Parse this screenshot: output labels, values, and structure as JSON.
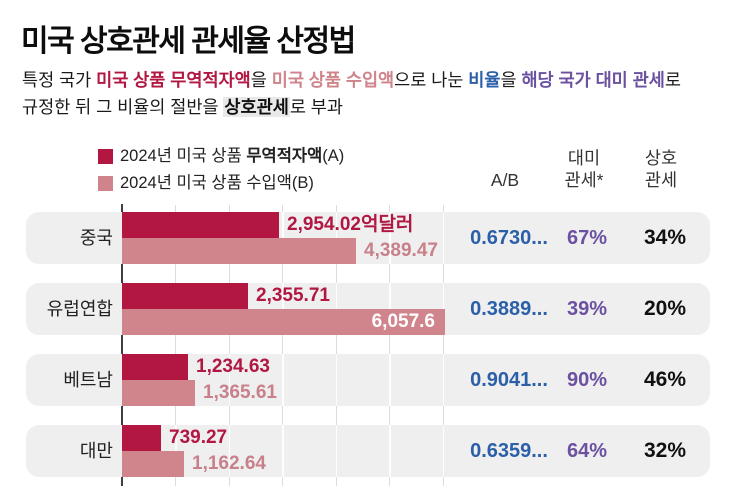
{
  "title": "미국 상호관세 관세율 산정법",
  "subtitle": {
    "line1": [
      {
        "text": "특정 국가 ",
        "style": "plain"
      },
      {
        "text": "미국 상품 무역적자액",
        "style": "deficit"
      },
      {
        "text": "을 ",
        "style": "plain"
      },
      {
        "text": "미국 상품 수입액",
        "style": "imports"
      },
      {
        "text": "으로 나눈 ",
        "style": "plain"
      },
      {
        "text": "비율",
        "style": "ratio"
      },
      {
        "text": "을 ",
        "style": "plain"
      },
      {
        "text": "해당 국가 대미 관세",
        "style": "tariff"
      },
      {
        "text": "로",
        "style": "plain"
      }
    ],
    "line2": [
      {
        "text": "규정한 뒤 그 비율의 절반을 ",
        "style": "plain"
      },
      {
        "text": "상호관세",
        "style": "reciprocal"
      },
      {
        "text": "로 부과",
        "style": "plain"
      }
    ]
  },
  "legend": {
    "items": [
      {
        "swatch_color": "#b11741",
        "text_normal": "2024년 미국 상품 ",
        "text_bold": "무역적자액",
        "text_suffix": "(A)"
      },
      {
        "swatch_color": "#cf848b",
        "text_normal": "2024년 미국 상품 수입액(B)",
        "text_bold": "",
        "text_suffix": ""
      }
    ]
  },
  "columns": {
    "ab": "A/B",
    "tariff": "대미\n관세*",
    "reciprocal": "상호\n관세"
  },
  "colors": {
    "deficit_bar": "#b11741",
    "imports_bar": "#d0858d",
    "deficit_text": "#b11741",
    "imports_text": "#c8808a",
    "ab_text": "#2b60a9",
    "tariff_text": "#6b519f",
    "reciprocal_text": "#111111",
    "row_background": "#efeff0",
    "highlight_background": "#e9e9e9"
  },
  "chart_data": {
    "type": "bar",
    "orientation": "horizontal",
    "unit": "억달러",
    "series": [
      {
        "name": "2024년 미국 상품 무역적자액(A)",
        "color": "#b11741"
      },
      {
        "name": "2024년 미국 상품 수입액(B)",
        "color": "#d0858d"
      }
    ],
    "x_axis": {
      "min": 0,
      "max": 6500,
      "gridline_interval": 1000,
      "gridlines_visible": true,
      "tick_labels_visible": false
    },
    "rows": [
      {
        "country": "중국",
        "deficit": 2954.02,
        "imports": 4389.47,
        "deficit_label": "2,954.02억달러",
        "imports_label": "4,389.47",
        "ab": "0.6730...",
        "tariff_on_us": "67%",
        "reciprocal": "34%"
      },
      {
        "country": "유럽연합",
        "deficit": 2355.71,
        "imports": 6057.6,
        "deficit_label": "2,355.71",
        "imports_label": "6,057.6",
        "ab": "0.3889...",
        "tariff_on_us": "39%",
        "reciprocal": "20%"
      },
      {
        "country": "베트남",
        "deficit": 1234.63,
        "imports": 1365.61,
        "deficit_label": "1,234.63",
        "imports_label": "1,365.61",
        "ab": "0.9041...",
        "tariff_on_us": "90%",
        "reciprocal": "46%"
      },
      {
        "country": "대만",
        "deficit": 739.27,
        "imports": 1162.64,
        "deficit_label": "739.27",
        "imports_label": "1,162.64",
        "ab": "0.6359...",
        "tariff_on_us": "64%",
        "reciprocal": "32%"
      }
    ]
  }
}
